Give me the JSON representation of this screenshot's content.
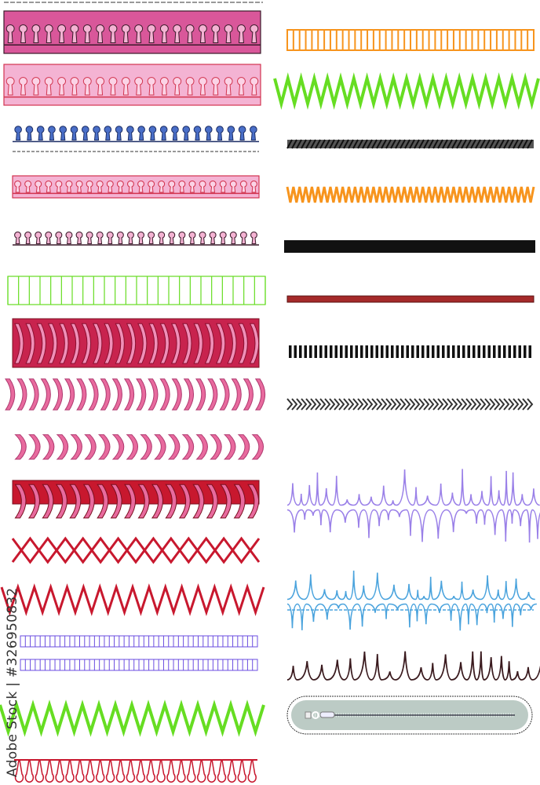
{
  "watermark": {
    "text": "Adobe Stock | #326950832"
  },
  "colors": {
    "pink_dark": "#d9579a",
    "pink_light": "#f4b3d3",
    "pink_mid": "#e86a9e",
    "outline_dark": "#3a1a2a",
    "blue": "#4a6fc8",
    "red_outline": "#d2344f",
    "green": "#66dd22",
    "crimson": "#c8234e",
    "red": "#c8182e",
    "purple": "#6b4de0",
    "orange": "#f7941d",
    "black": "#111111",
    "dark_red": "#a52a2a",
    "lavender": "#9a80e8",
    "sky_blue": "#4aa3dd",
    "dark_brown": "#3a1a1e",
    "zipper_bg": "#bccbc5"
  }
}
